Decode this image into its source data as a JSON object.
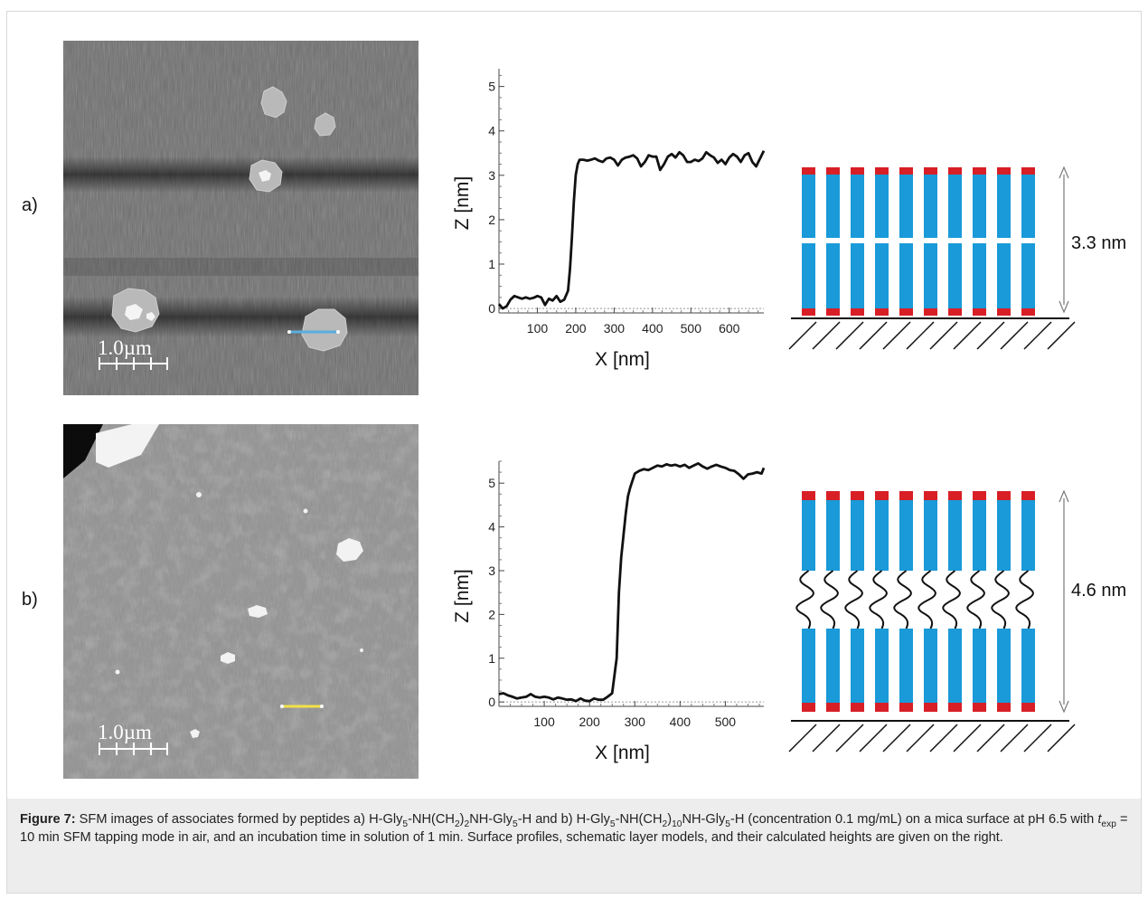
{
  "panels": [
    {
      "label": "a)",
      "scale_bar": "1.0µm",
      "model_height": "3.3 nm",
      "chart_data": {
        "type": "line",
        "xlabel": "X [nm]",
        "ylabel": "Z [nm]",
        "xlim": [
          0,
          690
        ],
        "ylim": [
          -0.1,
          5.4
        ],
        "x_ticks": [
          100,
          200,
          300,
          400,
          500,
          600
        ],
        "y_ticks": [
          0,
          1,
          2,
          3,
          4,
          5
        ],
        "baseline": 0,
        "x": [
          0,
          10,
          20,
          30,
          40,
          50,
          60,
          70,
          80,
          90,
          100,
          110,
          120,
          130,
          140,
          150,
          160,
          170,
          180,
          185,
          190,
          195,
          200,
          205,
          210,
          220,
          230,
          240,
          250,
          260,
          270,
          280,
          290,
          300,
          310,
          320,
          330,
          340,
          350,
          360,
          370,
          380,
          390,
          400,
          410,
          420,
          430,
          440,
          450,
          460,
          470,
          480,
          490,
          500,
          510,
          520,
          530,
          540,
          550,
          560,
          570,
          580,
          590,
          600,
          610,
          620,
          630,
          640,
          650,
          660,
          670,
          680,
          690
        ],
        "y": [
          0.1,
          0.0,
          0.05,
          0.2,
          0.28,
          0.25,
          0.22,
          0.25,
          0.22,
          0.24,
          0.28,
          0.25,
          0.08,
          0.22,
          0.18,
          0.28,
          0.15,
          0.2,
          0.4,
          0.9,
          1.6,
          2.4,
          3.0,
          3.25,
          3.35,
          3.35,
          3.33,
          3.35,
          3.38,
          3.33,
          3.3,
          3.38,
          3.4,
          3.35,
          3.22,
          3.35,
          3.4,
          3.42,
          3.45,
          3.38,
          3.2,
          3.3,
          3.45,
          3.42,
          3.42,
          3.12,
          3.25,
          3.42,
          3.48,
          3.4,
          3.52,
          3.45,
          3.3,
          3.3,
          3.35,
          3.32,
          3.38,
          3.52,
          3.45,
          3.4,
          3.28,
          3.35,
          3.25,
          3.4,
          3.48,
          3.42,
          3.3,
          3.45,
          3.5,
          3.3,
          3.2,
          3.38,
          3.55
        ]
      }
    },
    {
      "label": "b)",
      "scale_bar": "1.0µm",
      "model_height": "4.6 nm",
      "chart_data": {
        "type": "line",
        "xlabel": "X [nm]",
        "ylabel": "Z [nm]",
        "xlim": [
          0,
          585
        ],
        "ylim": [
          -0.1,
          5.5
        ],
        "x_ticks": [
          100,
          200,
          300,
          400,
          500
        ],
        "y_ticks": [
          0,
          1,
          2,
          3,
          4,
          5
        ],
        "baseline": 0,
        "x": [
          0,
          10,
          20,
          30,
          40,
          50,
          60,
          70,
          80,
          90,
          100,
          110,
          120,
          130,
          140,
          150,
          160,
          170,
          180,
          190,
          200,
          210,
          220,
          230,
          240,
          250,
          260,
          265,
          270,
          275,
          280,
          285,
          290,
          300,
          310,
          320,
          330,
          340,
          350,
          360,
          370,
          380,
          390,
          400,
          410,
          420,
          430,
          440,
          450,
          460,
          470,
          480,
          490,
          500,
          510,
          520,
          530,
          540,
          550,
          560,
          570,
          580,
          585
        ],
        "y": [
          0.18,
          0.2,
          0.15,
          0.12,
          0.08,
          0.1,
          0.12,
          0.18,
          0.12,
          0.1,
          0.12,
          0.1,
          0.06,
          0.1,
          0.08,
          0.05,
          0.06,
          0.02,
          0.08,
          0.03,
          0.02,
          0.08,
          0.05,
          0.05,
          0.12,
          0.2,
          1.0,
          2.5,
          3.3,
          3.8,
          4.3,
          4.7,
          4.9,
          5.22,
          5.28,
          5.32,
          5.3,
          5.35,
          5.4,
          5.38,
          5.43,
          5.4,
          5.42,
          5.38,
          5.42,
          5.35,
          5.4,
          5.45,
          5.38,
          5.33,
          5.38,
          5.42,
          5.38,
          5.35,
          5.3,
          5.28,
          5.2,
          5.1,
          5.2,
          5.22,
          5.25,
          5.22,
          5.35
        ]
      }
    }
  ],
  "caption": {
    "label": "Figure 7:",
    "t1": " SFM images of associates formed by peptides a) H-Gly",
    "s1": "5",
    "t2": "-NH(CH",
    "s2": "2",
    "t3": ")",
    "s3": "2",
    "t4": "NH-Gly",
    "s4": "5",
    "t5": "-H and b) H-Gly",
    "s5": "5",
    "t6": "-NH(CH",
    "s6": "2",
    "t7": ")",
    "s7": "10",
    "t8": "NH-Gly",
    "s8": "5",
    "t9": "-H (concentration 0.1 mg/mL) on a mica surface at pH 6.5 with ",
    "t_symbol": "t",
    "t_sub": "exp",
    "t10": " = 10 min SFM tapping mode in air, and an incubation time in solution of 1 min. Surface profiles, schematic layer models, and their calculated heights are given on the right."
  },
  "colors": {
    "molecule_body": "#1a9ad9",
    "molecule_cap": "#d81f26",
    "profile_line": "#111111",
    "scan_line_a": "#5aaee0",
    "scan_line_b": "#f2e14a"
  }
}
